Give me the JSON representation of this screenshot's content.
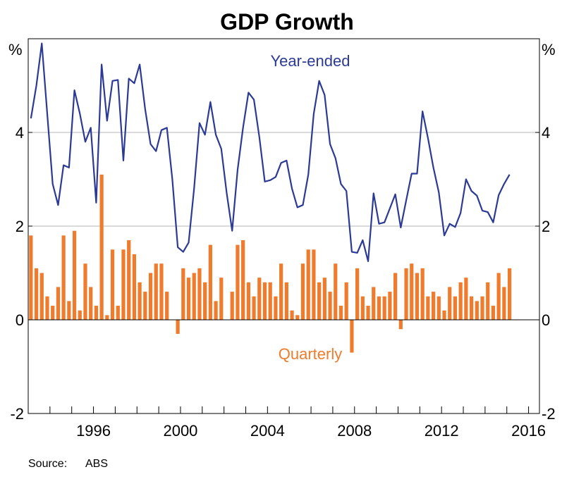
{
  "chart_data": {
    "type": "bar+line",
    "title": "GDP Growth",
    "y_unit_left": "%",
    "y_unit_right": "%",
    "ylim": [
      -2,
      6
    ],
    "y_ticks": [
      -2,
      0,
      2,
      4
    ],
    "y_tick_labels": [
      "-2",
      "0",
      "2",
      "4"
    ],
    "xlim": [
      1993.0,
      2016.5
    ],
    "x_ticks": [
      1996,
      2000,
      2004,
      2008,
      2012,
      2016
    ],
    "x_tick_labels": [
      "1996",
      "2000",
      "2004",
      "2008",
      "2012",
      "2016"
    ],
    "grid": true,
    "colors": {
      "year_ended": "#2B3A96",
      "quarterly": "#F07B2C",
      "grid": "#b5b5b5",
      "axis": "#000000"
    },
    "x_start": "1993 Q1",
    "series": [
      {
        "name": "Year-ended",
        "kind": "line",
        "values": [
          4.3,
          5.0,
          5.9,
          4.4,
          2.9,
          2.45,
          3.3,
          3.25,
          4.9,
          4.4,
          3.8,
          4.1,
          2.5,
          5.45,
          4.25,
          5.1,
          5.12,
          3.4,
          5.15,
          5.05,
          5.45,
          4.5,
          3.75,
          3.6,
          4.05,
          4.1,
          3.0,
          1.55,
          1.45,
          1.65,
          2.8,
          4.2,
          3.95,
          4.65,
          3.95,
          3.65,
          2.7,
          1.9,
          3.2,
          4.1,
          4.85,
          4.7,
          3.9,
          2.95,
          2.98,
          3.05,
          3.35,
          3.4,
          2.8,
          2.4,
          2.45,
          3.1,
          4.4,
          5.1,
          4.8,
          3.75,
          3.45,
          2.9,
          2.75,
          1.45,
          1.43,
          1.7,
          1.25,
          2.7,
          2.05,
          2.08,
          2.38,
          2.68,
          1.97,
          2.55,
          3.12,
          3.12,
          4.45,
          3.88,
          3.25,
          2.72,
          1.8,
          2.05,
          1.98,
          2.28,
          3.0,
          2.75,
          2.65,
          2.33,
          2.3,
          2.08,
          2.66,
          2.9,
          3.1
        ]
      },
      {
        "name": "Quarterly",
        "kind": "bar",
        "values": [
          1.8,
          1.1,
          1.0,
          0.5,
          0.3,
          0.7,
          1.8,
          0.4,
          1.9,
          0.2,
          1.2,
          0.7,
          0.3,
          3.1,
          0.1,
          1.5,
          0.3,
          1.5,
          1.7,
          1.4,
          0.8,
          0.6,
          1.0,
          1.2,
          1.2,
          0.6,
          0.0,
          -0.3,
          1.1,
          0.9,
          1.0,
          1.1,
          0.8,
          1.6,
          0.4,
          0.9,
          0.0,
          0.6,
          1.6,
          1.7,
          0.8,
          0.5,
          0.9,
          0.8,
          0.8,
          0.5,
          1.2,
          0.8,
          0.2,
          0.1,
          1.2,
          1.5,
          1.5,
          0.8,
          0.9,
          0.6,
          1.2,
          0.3,
          0.8,
          -0.7,
          1.1,
          0.5,
          0.3,
          0.7,
          0.5,
          0.5,
          0.6,
          1.0,
          -0.2,
          1.1,
          1.2,
          1.0,
          1.1,
          0.5,
          0.6,
          0.5,
          0.2,
          0.7,
          0.5,
          0.8,
          0.9,
          0.5,
          0.4,
          0.5,
          0.8,
          0.3,
          1.0,
          0.7,
          1.1
        ]
      }
    ]
  },
  "source": {
    "label": "Source:",
    "value": "ABS"
  }
}
